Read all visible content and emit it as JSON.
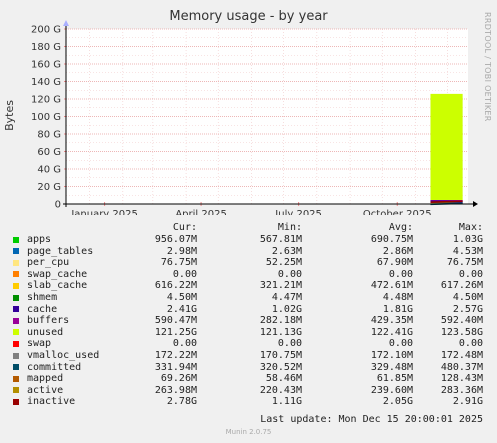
{
  "title": "Memory usage - by year",
  "side_label": "RRDTOOL / TOBI OETIKER",
  "last_update": "Last update: Mon Dec 15 20:00:01 2025",
  "footer": "Munin 2.0.75",
  "legend_headers": {
    "cur": "Cur:",
    "min": "Min:",
    "avg": "Avg:",
    "max": "Max:"
  },
  "legend": [
    {
      "name": "apps",
      "color": "#00cc00",
      "cur": "956.07M",
      "min": "567.81M",
      "avg": "690.75M",
      "max": "1.03G"
    },
    {
      "name": "page_tables",
      "color": "#0066b3",
      "cur": "2.98M",
      "min": "2.63M",
      "avg": "2.86M",
      "max": "4.53M"
    },
    {
      "name": "per_cpu",
      "color": "#ffe680",
      "cur": "76.75M",
      "min": "52.25M",
      "avg": "67.90M",
      "max": "76.75M"
    },
    {
      "name": "swap_cache",
      "color": "#ff8000",
      "cur": "0.00",
      "min": "0.00",
      "avg": "0.00",
      "max": "0.00"
    },
    {
      "name": "slab_cache",
      "color": "#ffcc00",
      "cur": "616.22M",
      "min": "321.21M",
      "avg": "472.61M",
      "max": "617.26M"
    },
    {
      "name": "shmem",
      "color": "#008f00",
      "cur": "4.50M",
      "min": "4.47M",
      "avg": "4.48M",
      "max": "4.50M"
    },
    {
      "name": "cache",
      "color": "#330099",
      "cur": "2.41G",
      "min": "1.02G",
      "avg": "1.81G",
      "max": "2.57G"
    },
    {
      "name": "buffers",
      "color": "#990099",
      "cur": "590.47M",
      "min": "282.18M",
      "avg": "429.35M",
      "max": "592.40M"
    },
    {
      "name": "unused",
      "color": "#ccff00",
      "cur": "121.25G",
      "min": "121.13G",
      "avg": "122.41G",
      "max": "123.58G"
    },
    {
      "name": "swap",
      "color": "#ff0000",
      "cur": "0.00",
      "min": "0.00",
      "avg": "0.00",
      "max": "0.00"
    },
    {
      "name": "vmalloc_used",
      "color": "#808080",
      "cur": "172.22M",
      "min": "170.75M",
      "avg": "172.10M",
      "max": "172.48M"
    },
    {
      "name": "committed",
      "color": "#004d66",
      "cur": "331.94M",
      "min": "320.52M",
      "avg": "329.48M",
      "max": "480.37M"
    },
    {
      "name": "mapped",
      "color": "#b35a00",
      "cur": "69.26M",
      "min": "58.46M",
      "avg": "61.85M",
      "max": "128.43M"
    },
    {
      "name": "active",
      "color": "#b38f00",
      "cur": "263.98M",
      "min": "220.43M",
      "avg": "239.60M",
      "max": "283.36M"
    },
    {
      "name": "inactive",
      "color": "#990000",
      "cur": "2.78G",
      "min": "1.11G",
      "avg": "2.05G",
      "max": "2.91G"
    }
  ],
  "chart_data": {
    "type": "area",
    "ylabel": "Bytes",
    "y_unit": "G",
    "ylim": [
      0,
      200
    ],
    "yticks": [
      0,
      20,
      40,
      60,
      80,
      100,
      120,
      140,
      160,
      180,
      200
    ],
    "ytick_labels": [
      "0",
      "20 G",
      "40 G",
      "60 G",
      "80 G",
      "100 G",
      "120 G",
      "140 G",
      "160 G",
      "180 G",
      "200 G"
    ],
    "xlim": [
      "2024-12-10",
      "2025-12-20"
    ],
    "xticks": [
      {
        "date": "2025-01-15",
        "label": "January 2025"
      },
      {
        "date": "2025-04-15",
        "label": "April 2025"
      },
      {
        "date": "2025-07-15",
        "label": "July 2025"
      },
      {
        "date": "2025-10-15",
        "label": "October 2025"
      }
    ],
    "data_start": "2025-11-15",
    "data_end": "2025-12-15",
    "stack_gb": [
      {
        "name": "apps",
        "value": 0.93
      },
      {
        "name": "page_tables",
        "value": 0.003
      },
      {
        "name": "per_cpu",
        "value": 0.075
      },
      {
        "name": "slab_cache",
        "value": 0.6
      },
      {
        "name": "shmem",
        "value": 0.004
      },
      {
        "name": "cache",
        "value": 2.41
      },
      {
        "name": "buffers",
        "value": 0.58
      },
      {
        "name": "unused",
        "value": 121.25
      }
    ],
    "lines_gb": [
      {
        "name": "inactive",
        "value": 2.78
      },
      {
        "name": "committed",
        "value": 0.33
      }
    ],
    "grid": true
  }
}
